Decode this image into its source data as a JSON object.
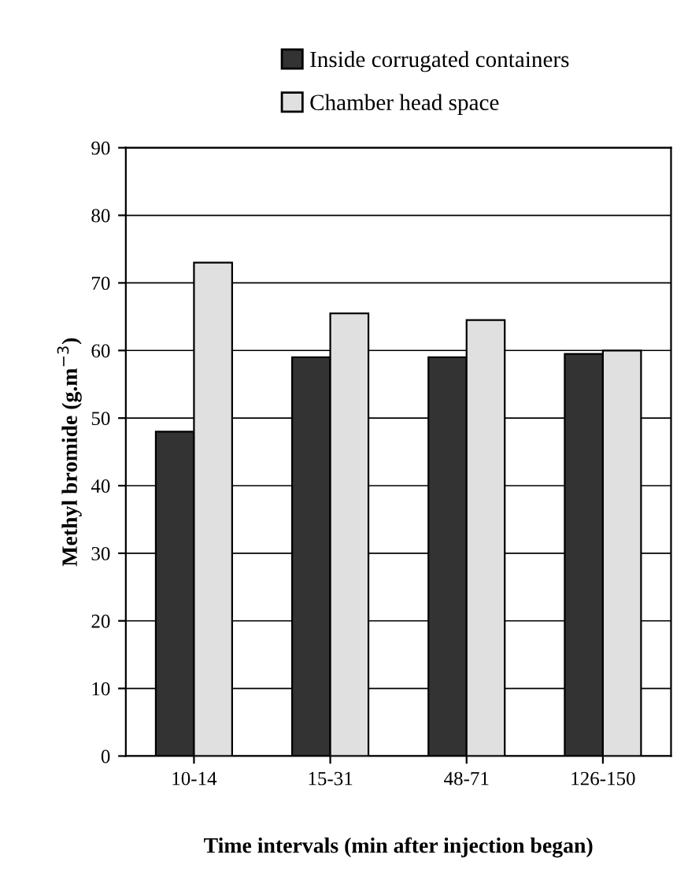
{
  "chart_data": {
    "type": "bar",
    "xlabel": "Time intervals (min after injection began)",
    "ylabel": "Methyl bromide (g.m$^{−3}$)",
    "categories": [
      "10-14",
      "15-31",
      "48-71",
      "126-150"
    ],
    "series": [
      {
        "name": "Inside corrugated containers",
        "color": "#333333",
        "values": [
          48,
          59,
          59,
          59.5
        ]
      },
      {
        "name": "Chamber head space",
        "color": "#e0e0e0",
        "values": [
          73,
          65.5,
          64.5,
          60
        ]
      }
    ],
    "ylim": [
      0,
      90
    ],
    "yticks": [
      0,
      10,
      20,
      30,
      40,
      50,
      60,
      70,
      80,
      90
    ],
    "grid": "y",
    "legend": "top"
  }
}
